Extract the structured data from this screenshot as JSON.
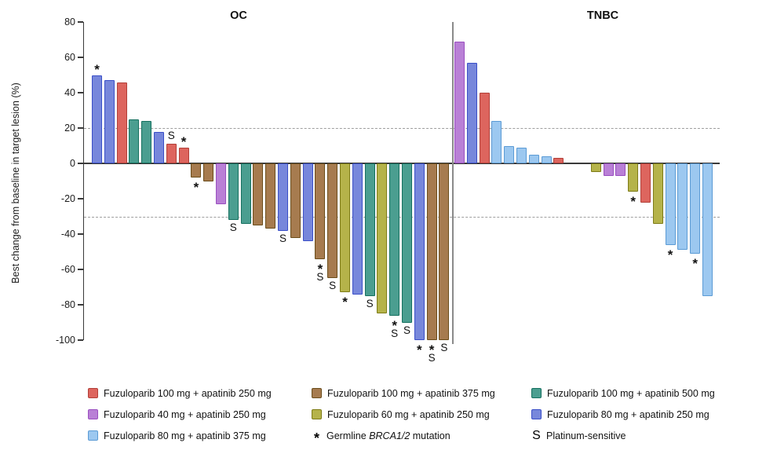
{
  "chart_data": {
    "type": "bar",
    "subtype": "waterfall",
    "title": "",
    "ylabel": "Best change from baseline in target lesion (%)",
    "ylim": [
      -105,
      80
    ],
    "yticks": [
      80,
      60,
      40,
      20,
      0,
      -20,
      -40,
      -60,
      -80,
      -100
    ],
    "reference_lines_pct": [
      20,
      -30
    ],
    "grid": false,
    "legend_position": "bottom",
    "marker_meanings": {
      "*": "Germline BRCA1/2 mutation",
      "S": "Platinum-sensitive"
    },
    "colors": {
      "red": {
        "fill": "#DD655E",
        "border": "#B23F38"
      },
      "purple": {
        "fill": "#B980D6",
        "border": "#9A4FC0"
      },
      "lightblue": {
        "fill": "#9CC8F0",
        "border": "#5B9BD5"
      },
      "brown": {
        "fill": "#A67B4F",
        "border": "#6B4D1B"
      },
      "olive": {
        "fill": "#B5B34A",
        "border": "#7E7C17"
      },
      "teal": {
        "fill": "#4B9E90",
        "border": "#15705F"
      },
      "blueviolet": {
        "fill": "#7787DB",
        "border": "#3A4FC8"
      }
    },
    "series_legend": [
      {
        "key": "red",
        "label": "Fuzuloparib 100 mg + apatinib 250 mg"
      },
      {
        "key": "purple",
        "label": "Fuzuloparib 40 mg + apatinib 250 mg"
      },
      {
        "key": "lightblue",
        "label": "Fuzuloparib 80 mg + apatinib 375 mg"
      },
      {
        "key": "brown",
        "label": "Fuzuloparib 100 mg + apatinib 375 mg"
      },
      {
        "key": "olive",
        "label": "Fuzuloparib 60 mg + apatinib 250 mg"
      },
      {
        "key": "teal",
        "label": "Fuzuloparib 100 mg + apatinib 500 mg"
      },
      {
        "key": "blueviolet",
        "label": "Fuzuloparib 80 mg + apatinib 250 mg"
      }
    ],
    "marker_legend": [
      {
        "symbol": "*",
        "label_parts": [
          "Germline ",
          "BRCA1/2",
          " mutation"
        ],
        "italic_index": 1
      },
      {
        "symbol": "S",
        "label_parts": [
          "Platinum-sensitive"
        ],
        "italic_index": -1
      }
    ],
    "legend_columns": [
      [
        "red",
        "purple",
        "lightblue"
      ],
      [
        "brown",
        "olive",
        "*"
      ],
      [
        "teal",
        "blueviolet",
        "S"
      ]
    ],
    "groups": [
      {
        "label": "OC",
        "bars": [
          {
            "value": 50,
            "series": "blueviolet",
            "markers": [
              "*"
            ]
          },
          {
            "value": 47,
            "series": "blueviolet",
            "markers": []
          },
          {
            "value": 46,
            "series": "red",
            "markers": []
          },
          {
            "value": 25,
            "series": "teal",
            "markers": []
          },
          {
            "value": 24,
            "series": "teal",
            "markers": []
          },
          {
            "value": 18,
            "series": "blueviolet",
            "markers": []
          },
          {
            "value": 11,
            "series": "red",
            "markers": [
              "S"
            ]
          },
          {
            "value": 9,
            "series": "red",
            "markers": [
              "*"
            ]
          },
          {
            "value": -8,
            "series": "brown",
            "markers": [
              "*"
            ]
          },
          {
            "value": -10,
            "series": "brown",
            "markers": []
          },
          {
            "value": -23,
            "series": "purple",
            "markers": []
          },
          {
            "value": -32,
            "series": "teal",
            "markers": [
              "S"
            ]
          },
          {
            "value": -34,
            "series": "teal",
            "markers": []
          },
          {
            "value": -35,
            "series": "brown",
            "markers": []
          },
          {
            "value": -37,
            "series": "brown",
            "markers": []
          },
          {
            "value": -38,
            "series": "blueviolet",
            "markers": [
              "S"
            ]
          },
          {
            "value": -42,
            "series": "brown",
            "markers": []
          },
          {
            "value": -44,
            "series": "blueviolet",
            "markers": []
          },
          {
            "value": -54,
            "series": "brown",
            "markers": [
              "*",
              "S"
            ]
          },
          {
            "value": -65,
            "series": "brown",
            "markers": [
              "S"
            ]
          },
          {
            "value": -73,
            "series": "olive",
            "markers": [
              "*"
            ]
          },
          {
            "value": -74,
            "series": "blueviolet",
            "markers": []
          },
          {
            "value": -75,
            "series": "teal",
            "markers": [
              "S"
            ]
          },
          {
            "value": -85,
            "series": "olive",
            "markers": []
          },
          {
            "value": -86,
            "series": "teal",
            "markers": [
              "*",
              "S"
            ]
          },
          {
            "value": -90,
            "series": "teal",
            "markers": [
              "S"
            ]
          },
          {
            "value": -100,
            "series": "blueviolet",
            "markers": [
              "*"
            ]
          },
          {
            "value": -100,
            "series": "brown",
            "markers": [
              "*",
              "S"
            ]
          },
          {
            "value": -100,
            "series": "brown",
            "markers": [
              "S"
            ]
          }
        ]
      },
      {
        "label": "TNBC",
        "bars": [
          {
            "value": 69,
            "series": "purple",
            "markers": []
          },
          {
            "value": 57,
            "series": "blueviolet",
            "markers": []
          },
          {
            "value": 40,
            "series": "red",
            "markers": []
          },
          {
            "value": 24,
            "series": "lightblue",
            "markers": []
          },
          {
            "value": 10,
            "series": "lightblue",
            "markers": []
          },
          {
            "value": 9,
            "series": "lightblue",
            "markers": []
          },
          {
            "value": 5,
            "series": "lightblue",
            "markers": []
          },
          {
            "value": 4,
            "series": "lightblue",
            "markers": []
          },
          {
            "value": 3,
            "series": "red",
            "markers": []
          },
          {
            "value": 0,
            "series": null,
            "markers": []
          },
          {
            "value": 0,
            "series": null,
            "markers": []
          },
          {
            "value": -5,
            "series": "olive",
            "markers": []
          },
          {
            "value": -7,
            "series": "purple",
            "markers": []
          },
          {
            "value": -7,
            "series": "purple",
            "markers": []
          },
          {
            "value": -16,
            "series": "olive",
            "markers": [
              "*"
            ]
          },
          {
            "value": -22,
            "series": "red",
            "markers": []
          },
          {
            "value": -34,
            "series": "olive",
            "markers": []
          },
          {
            "value": -46,
            "series": "lightblue",
            "markers": [
              "*"
            ]
          },
          {
            "value": -49,
            "series": "lightblue",
            "markers": []
          },
          {
            "value": -51,
            "series": "lightblue",
            "markers": [
              "*"
            ]
          },
          {
            "value": -75,
            "series": "lightblue",
            "markers": []
          }
        ]
      }
    ]
  }
}
